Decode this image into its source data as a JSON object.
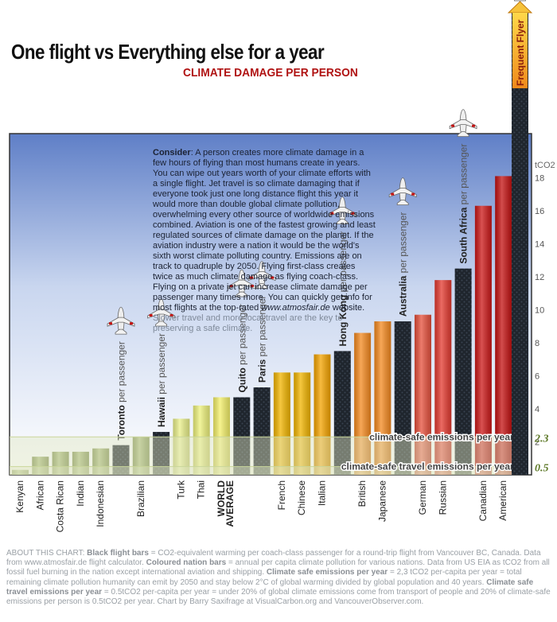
{
  "title": "One flight vs Everything else for a year",
  "subtitle": "CLIMATE DAMAGE PER PERSON",
  "consider": {
    "label": "Consider",
    "text": ": A person creates more climate damage in a few hours of flying than most humans create in years. You can wipe out years worth of your climate efforts with a single flight. Jet travel is so climate damaging that if everyone took just one long distance flight this year it would more than double global climate pollution, overwhelming every other source of worldwide emissions combined. Aviation is one of the fastest growing and least regulated sources of climate damage on the planet. If the aviation industry were a nation it would be the world's sixth worst climate polluting country. Emissions are on track to quadruple by 2050. Flying first-class creates twice as much climate damage as flying coach-class. Flying on a private jet can increase climate damage per passenger many times more. You can quickly get info for most flights at the top-rated ",
    "link": "www.atmosfair.de",
    "text2": " website.",
    "faded": "Slower travel and more local travel are the key to preserving a safe climate."
  },
  "footer": {
    "label": "ABOUT THIS CHART:",
    "b1": "Black flight bars",
    "t1": " = CO2-equivalent warming per coach-class passenger for a round-trip flight from Vancouver BC, Canada. Data from www.atmosfair.de flight calculator. ",
    "b2": "Coloured nation bars",
    "t2": " = annual per capita climate pollution for various nations. Data from US EIA as tCO2 from all fossil fuel burning in the nation except international aviation and shipping. ",
    "b3": "Climate safe emissions per year",
    "t3": " = 2,3 tCO2 per-capita per year = total remaining climate pollution humanity can emit by 2050 and stay below 2°C of global warming divided by global population and 40 years. ",
    "b4": "Climate safe travel emissions per year",
    "t4": " = 0.5tCO2 per-capita per year = under 20% of global climate emissions come from transport of people and 20% of climate-safe emissions per person is 0.5tCO2 per year. Chart by Barry Saxifrage at VisualCarbon.org and VancouverObserver.com."
  },
  "colors": {
    "sky_top": "#5f7fc7",
    "sky_bottom": "#ffffff",
    "nation_green": "#a6ba6b",
    "flight_black": "#1f252d",
    "title_red": "#b01212",
    "frame": "#333333"
  },
  "chart_data": {
    "type": "bar",
    "ylabel": "tCO2",
    "ylim": [
      0,
      20
    ],
    "yticks": [
      2,
      4,
      6,
      8,
      10,
      12,
      14,
      16,
      18
    ],
    "bars": [
      {
        "label": "Kenyan",
        "value": 0.3,
        "kind": "nation",
        "color": "#9db065"
      },
      {
        "label": "African",
        "value": 1.1,
        "kind": "nation",
        "color": "#9db065"
      },
      {
        "label": "Costa Rican",
        "value": 1.4,
        "kind": "nation",
        "color": "#9db065"
      },
      {
        "label": "Indian",
        "value": 1.4,
        "kind": "nation",
        "color": "#9db065"
      },
      {
        "label": "Indonesian",
        "value": 1.6,
        "kind": "nation",
        "color": "#9db065"
      },
      {
        "label": "Toronto per passenger",
        "value": 1.8,
        "kind": "flight"
      },
      {
        "label": "Brazilian",
        "value": 2.3,
        "kind": "nation",
        "color": "#9db065"
      },
      {
        "label": "Hawaii per passenger",
        "value": 2.6,
        "kind": "flight"
      },
      {
        "label": "Turk",
        "value": 3.4,
        "kind": "nation",
        "color": "#eaf08a"
      },
      {
        "label": "Thai",
        "value": 4.2,
        "kind": "nation",
        "color": "#eef27c"
      },
      {
        "label": "WORLD AVERAGE",
        "value": 4.7,
        "kind": "nation",
        "color": "#f4f06a",
        "bold": true
      },
      {
        "label": "Quito per passenger",
        "value": 4.7,
        "kind": "flight"
      },
      {
        "label": "Paris per passenger",
        "value": 5.3,
        "kind": "flight"
      },
      {
        "label": "French",
        "value": 6.2,
        "kind": "nation",
        "color": "#f2b500"
      },
      {
        "label": "Chinese",
        "value": 6.2,
        "kind": "nation",
        "color": "#f2b500"
      },
      {
        "label": "Italian",
        "value": 7.3,
        "kind": "nation",
        "color": "#f5a400"
      },
      {
        "label": "Hong Kong per passenger",
        "value": 7.5,
        "kind": "flight"
      },
      {
        "label": "British",
        "value": 8.6,
        "kind": "nation",
        "color": "#f58a20"
      },
      {
        "label": "Japanese",
        "value": 9.3,
        "kind": "nation",
        "color": "#f58a20"
      },
      {
        "label": "Australia per passenger",
        "value": 9.3,
        "kind": "flight"
      },
      {
        "label": "German",
        "value": 9.7,
        "kind": "nation",
        "color": "#e6503c"
      },
      {
        "label": "Russian",
        "value": 11.8,
        "kind": "nation",
        "color": "#e43a30"
      },
      {
        "label": "South Africa per passenger",
        "value": 12.5,
        "kind": "flight"
      },
      {
        "label": "Canadian",
        "value": 16.3,
        "kind": "nation",
        "color": "#cc1818"
      },
      {
        "label": "American",
        "value": 18.1,
        "kind": "nation",
        "color": "#c41212"
      }
    ],
    "frequent_flyer": {
      "label": "Frequent Flyer",
      "value": 28.0
    },
    "reference_lines": [
      {
        "label": "climate-safe emissions per year",
        "value": 2.3,
        "value_label": "2.3"
      },
      {
        "label": "climate-safe travel emissions per year",
        "value": 0.5,
        "value_label": "0.5"
      }
    ],
    "grid": false,
    "legend": "none"
  }
}
